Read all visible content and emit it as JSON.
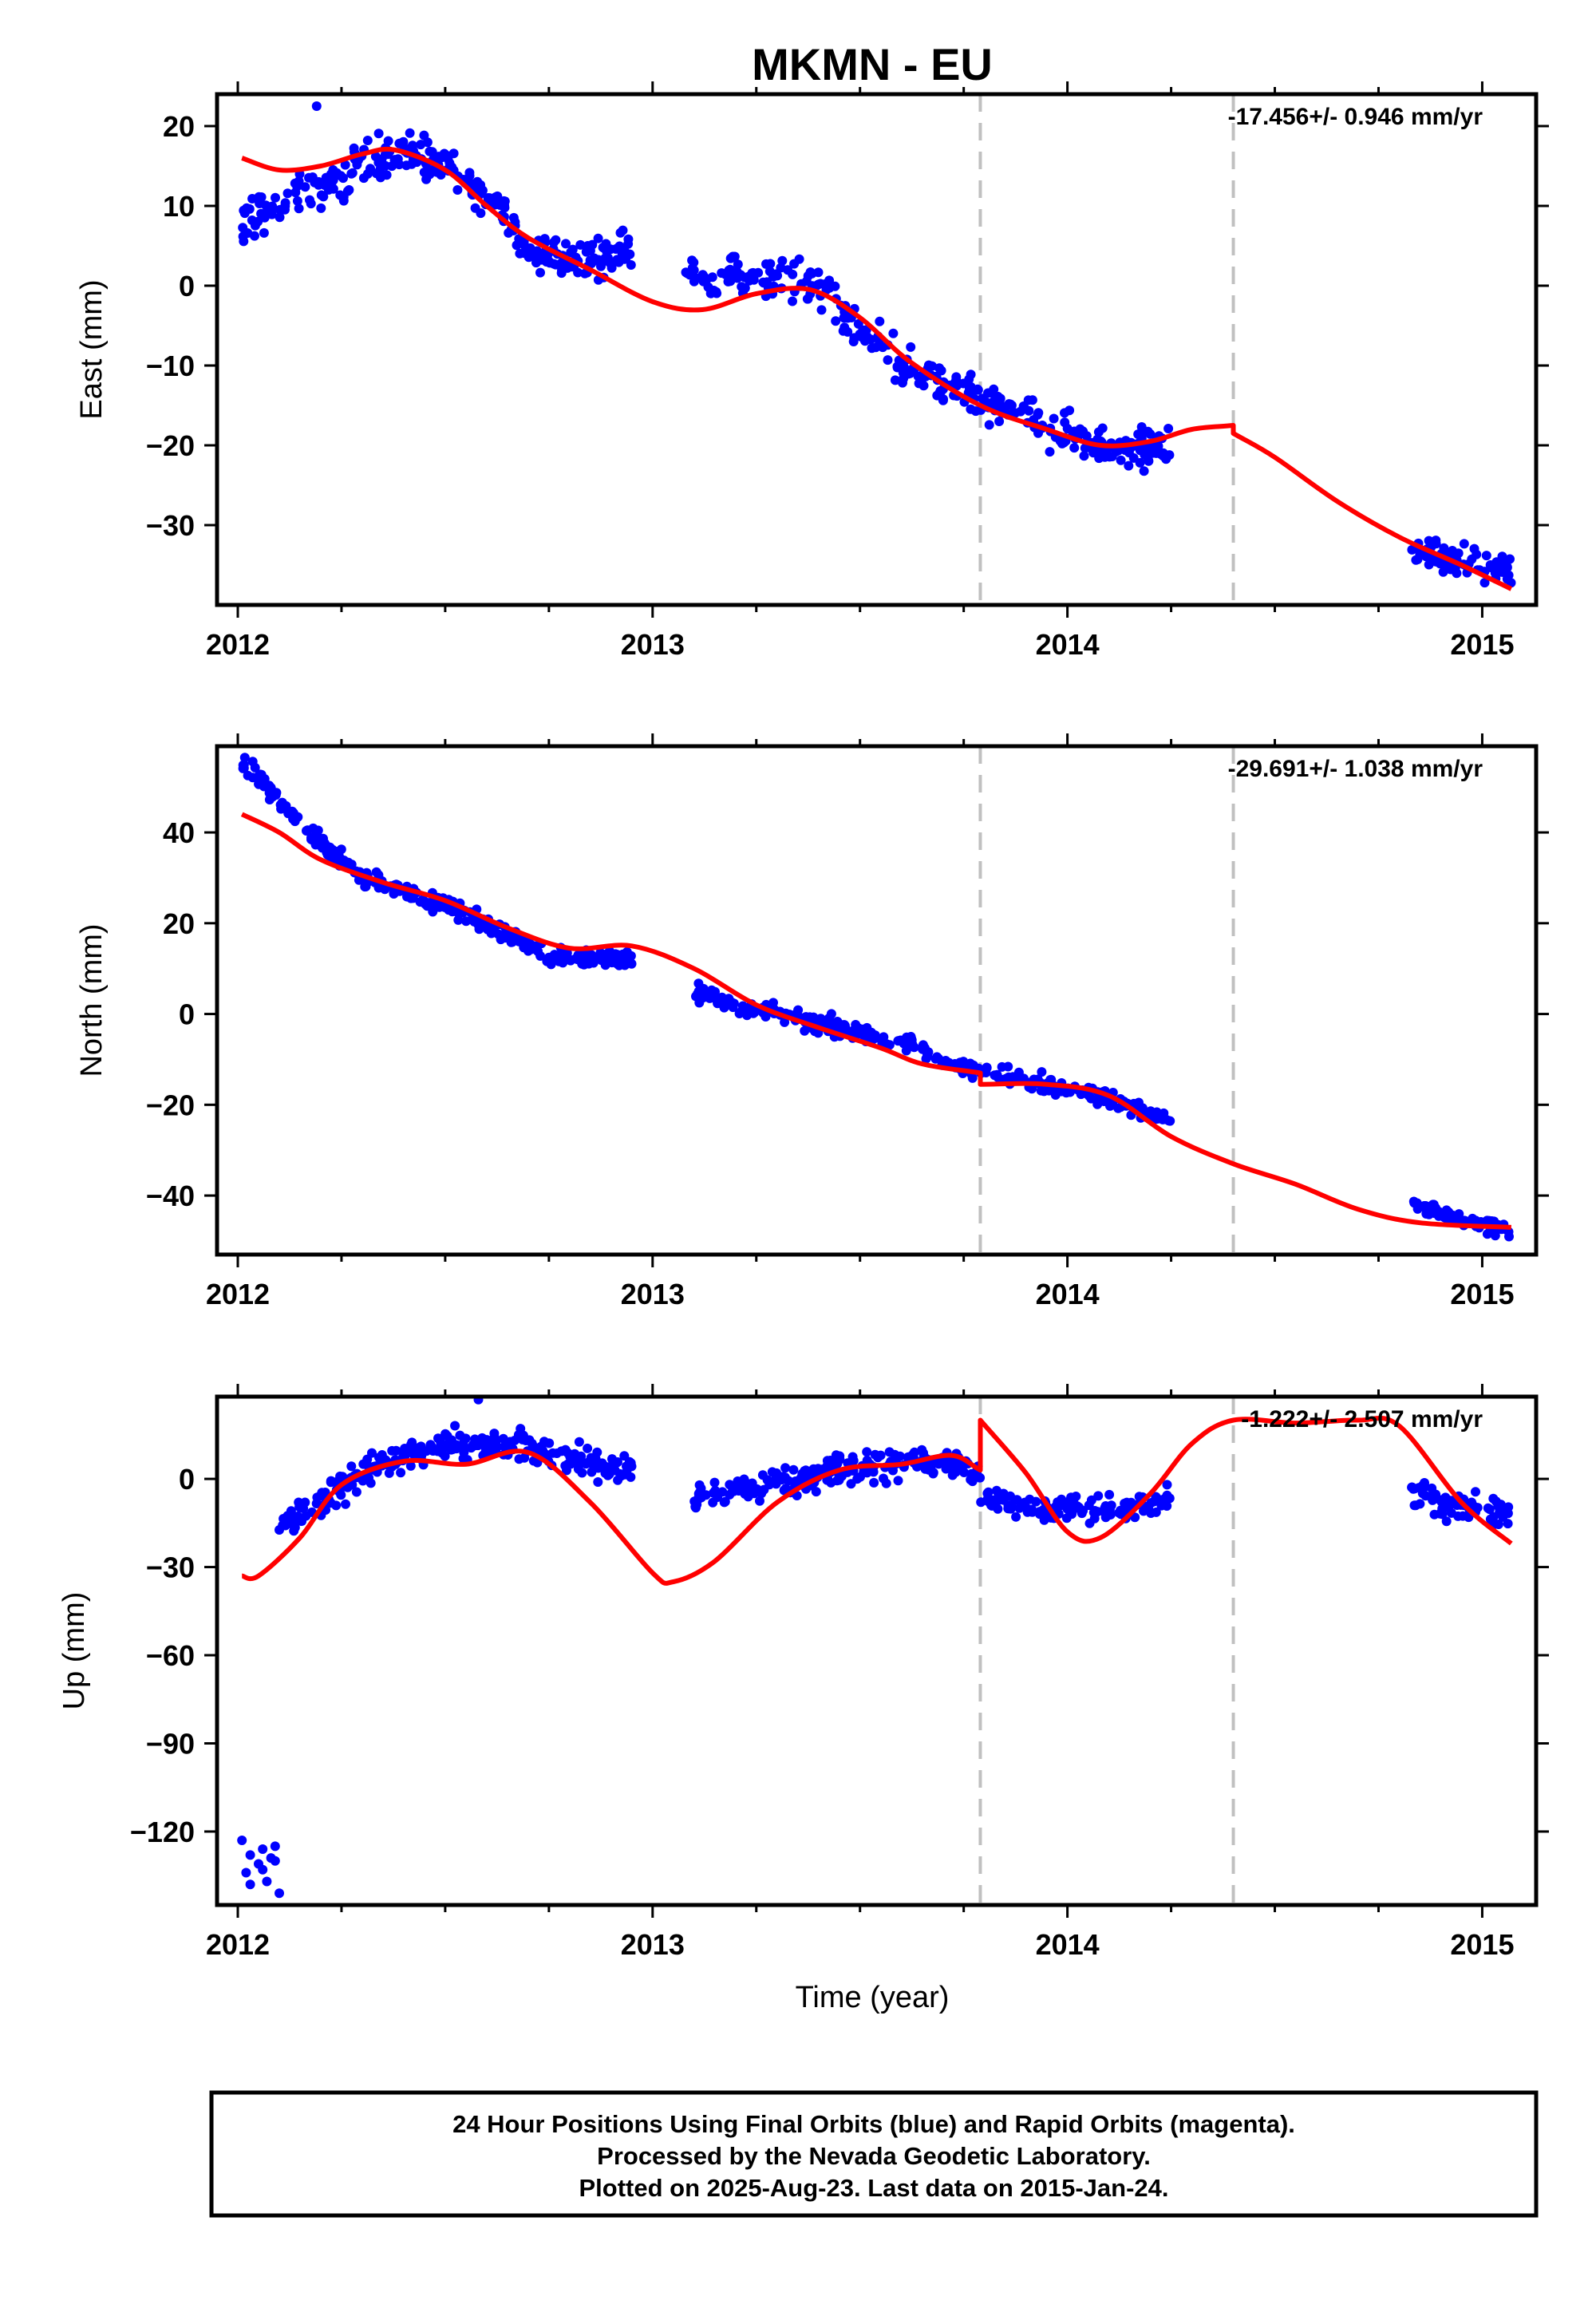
{
  "title": "MKMN - EU",
  "x_axis": {
    "label": "Time (year)",
    "range": [
      2011.95,
      2015.13
    ],
    "major_ticks": [
      2012,
      2013,
      2014,
      2015
    ],
    "minor_ticks": [
      2012.25,
      2012.5,
      2012.75,
      2013.25,
      2013.5,
      2013.75,
      2014.25,
      2014.5,
      2014.75
    ],
    "event_lines": [
      2013.79,
      2014.4
    ]
  },
  "colors": {
    "final_orbits": "#0000ff",
    "model": "#ff0000",
    "event_line": "#c0c0c0",
    "frame": "#000000"
  },
  "footer": [
    "24 Hour Positions Using Final Orbits (blue) and Rapid Orbits (magenta).",
    "Processed by the Nevada Geodetic Laboratory.",
    "Plotted on 2025-Aug-23. Last data on 2015-Jan-24."
  ],
  "chart_data": [
    {
      "type": "scatter",
      "ylabel": "East (mm)",
      "ylim": [
        -40,
        24
      ],
      "yticks": [
        20,
        10,
        0,
        -10,
        -20,
        -30
      ],
      "rate_label": "-17.456+/- 0.946 mm/yr",
      "model": {
        "x": [
          2012.01,
          2012.1,
          2012.2,
          2012.3,
          2012.38,
          2012.5,
          2012.6,
          2012.7,
          2012.85,
          2013.0,
          2013.12,
          2013.25,
          2013.38,
          2013.5,
          2013.62,
          2013.79,
          2013.95,
          2014.08,
          2014.2,
          2014.3,
          2014.4,
          2014.4,
          2014.5,
          2014.65,
          2014.8,
          2014.95,
          2015.07
        ],
        "y": [
          16.0,
          14.5,
          15.0,
          16.5,
          17.0,
          14.5,
          10.0,
          6.0,
          2.0,
          -2.0,
          -3.0,
          -1.0,
          -0.5,
          -4.0,
          -9.5,
          -15.0,
          -18.0,
          -20.0,
          -19.5,
          -18.0,
          -17.5,
          -18.5,
          -21.5,
          -27.0,
          -31.5,
          -35.0,
          -38.0
        ]
      },
      "segments": [
        {
          "x0": 2012.01,
          "x1": 2012.95,
          "x": [
            2012.0,
            2012.1,
            2012.2,
            2012.3,
            2012.4,
            2012.5,
            2012.6,
            2012.7,
            2012.8,
            2012.95
          ],
          "y": [
            8.0,
            10.5,
            12.0,
            15.0,
            16.5,
            15.0,
            11.5,
            5.0,
            3.5,
            4.0
          ],
          "spread": 2.6,
          "count": 300
        },
        {
          "x0": 2013.08,
          "x1": 2014.25,
          "x": [
            2013.08,
            2013.2,
            2013.3,
            2013.4,
            2013.5,
            2013.6,
            2013.8,
            2013.9,
            2014.0,
            2014.1,
            2014.25
          ],
          "y": [
            1.0,
            1.0,
            0.5,
            0.0,
            -5.5,
            -10.0,
            -14.5,
            -16.5,
            -18.5,
            -20.0,
            -20.0
          ],
          "spread": 2.5,
          "count": 340
        },
        {
          "x0": 2014.83,
          "x1": 2015.07,
          "x": [
            2014.83,
            2014.9,
            2015.0,
            2015.07
          ],
          "y": [
            -33.5,
            -34.0,
            -35.0,
            -36.0
          ],
          "spread": 1.8,
          "count": 70
        }
      ],
      "outliers": {
        "x": [
          2012.19
        ],
        "y": [
          22.5
        ]
      }
    },
    {
      "type": "scatter",
      "ylabel": "North (mm)",
      "ylim": [
        -53,
        59
      ],
      "yticks": [
        40,
        20,
        0,
        -20,
        -40
      ],
      "rate_label": "-29.691+/- 1.038 mm/yr",
      "model": {
        "x": [
          2012.01,
          2012.1,
          2012.2,
          2012.35,
          2012.5,
          2012.65,
          2012.8,
          2012.95,
          2013.1,
          2013.25,
          2013.4,
          2013.55,
          2013.65,
          2013.79,
          2013.79,
          2013.95,
          2014.1,
          2014.25,
          2014.4,
          2014.55,
          2014.7,
          2014.85,
          2015.07
        ],
        "y": [
          44.0,
          40.0,
          34.0,
          29.0,
          25.0,
          19.0,
          14.5,
          15.0,
          10.0,
          2.0,
          -3.0,
          -7.5,
          -11.0,
          -13.0,
          -15.5,
          -15.5,
          -18.0,
          -27.0,
          -33.0,
          -37.5,
          -43.0,
          -46.0,
          -47.0
        ]
      },
      "segments": [
        {
          "x0": 2012.01,
          "x1": 2012.95,
          "x": [
            2012.0,
            2012.05,
            2012.15,
            2012.3,
            2012.5,
            2012.6,
            2012.75,
            2012.95
          ],
          "y": [
            56.0,
            52.0,
            42.0,
            30.0,
            24.0,
            20.0,
            13.0,
            12.0
          ],
          "spread": 2.0,
          "count": 300
        },
        {
          "x0": 2013.1,
          "x1": 2014.25,
          "x": [
            2013.1,
            2013.2,
            2013.35,
            2013.5,
            2013.6,
            2013.75,
            2013.9,
            2014.1,
            2014.25
          ],
          "y": [
            5.0,
            2.0,
            -1.0,
            -4.0,
            -6.0,
            -12.0,
            -14.5,
            -18.5,
            -24.0
          ],
          "spread": 1.8,
          "count": 320
        },
        {
          "x0": 2014.83,
          "x1": 2015.07,
          "x": [
            2014.83,
            2014.95,
            2015.07
          ],
          "y": [
            -42.0,
            -45.0,
            -48.0
          ],
          "spread": 1.6,
          "count": 70
        }
      ],
      "outliers": {
        "x": [],
        "y": []
      }
    },
    {
      "type": "scatter",
      "ylabel": "Up (mm)",
      "ylim": [
        -145,
        28
      ],
      "yticks": [
        0,
        -30,
        -60,
        -90,
        -120
      ],
      "rate_label": "-1.222+/- 2.507 mm/yr",
      "model": {
        "x": [
          2012.01,
          2012.05,
          2012.15,
          2012.25,
          2012.4,
          2012.55,
          2012.7,
          2012.85,
          2013.0,
          2013.05,
          2013.15,
          2013.3,
          2013.45,
          2013.6,
          2013.72,
          2013.79,
          2013.79,
          2013.9,
          2014.0,
          2014.08,
          2014.2,
          2014.3,
          2014.4,
          2014.55,
          2014.7,
          2014.8,
          2014.95,
          2015.07
        ],
        "y": [
          -33.0,
          -33.0,
          -20.0,
          -2.0,
          6.0,
          5.0,
          9.0,
          -8.0,
          -32.0,
          -35.0,
          -28.0,
          -8.0,
          3.0,
          5.0,
          8.0,
          3.0,
          20.0,
          2.0,
          -18.0,
          -20.0,
          -5.0,
          12.0,
          20.0,
          19.0,
          20.0,
          18.0,
          -8.0,
          -22.0
        ]
      },
      "segments": [
        {
          "x0": 2012.1,
          "x1": 2012.95,
          "x": [
            2012.1,
            2012.2,
            2012.3,
            2012.45,
            2012.6,
            2012.8,
            2012.95
          ],
          "y": [
            -17.0,
            -8.0,
            2.0,
            10.0,
            12.0,
            7.0,
            3.0
          ],
          "spread": 5.0,
          "count": 280
        },
        {
          "x0": 2013.1,
          "x1": 2013.79,
          "x": [
            2013.1,
            2013.2,
            2013.35,
            2013.5,
            2013.65,
            2013.79
          ],
          "y": [
            -5.0,
            -4.0,
            0.0,
            4.0,
            6.0,
            3.0
          ],
          "spread": 5.0,
          "count": 220
        },
        {
          "x0": 2013.79,
          "x1": 2014.25,
          "x": [
            2013.79,
            2013.9,
            2014.1,
            2014.25
          ],
          "y": [
            -6.0,
            -10.0,
            -10.0,
            -7.0
          ],
          "spread": 4.5,
          "count": 130
        },
        {
          "x0": 2014.83,
          "x1": 2015.07,
          "x": [
            2014.83,
            2014.95,
            2015.07
          ],
          "y": [
            -5.0,
            -10.0,
            -12.0
          ],
          "spread": 4.5,
          "count": 70
        }
      ],
      "outliers": {
        "x": [
          2012.01,
          2012.02,
          2012.03,
          2012.05,
          2012.06,
          2012.07,
          2012.08,
          2012.09,
          2012.1,
          2012.03,
          2012.06,
          2012.09,
          2012.58
        ],
        "y": [
          -123.0,
          -134.0,
          -128.0,
          -131.0,
          -126.0,
          -137.0,
          -129.0,
          -125.0,
          -141.0,
          -138.0,
          -133.0,
          -130.0,
          27.0
        ]
      }
    }
  ]
}
